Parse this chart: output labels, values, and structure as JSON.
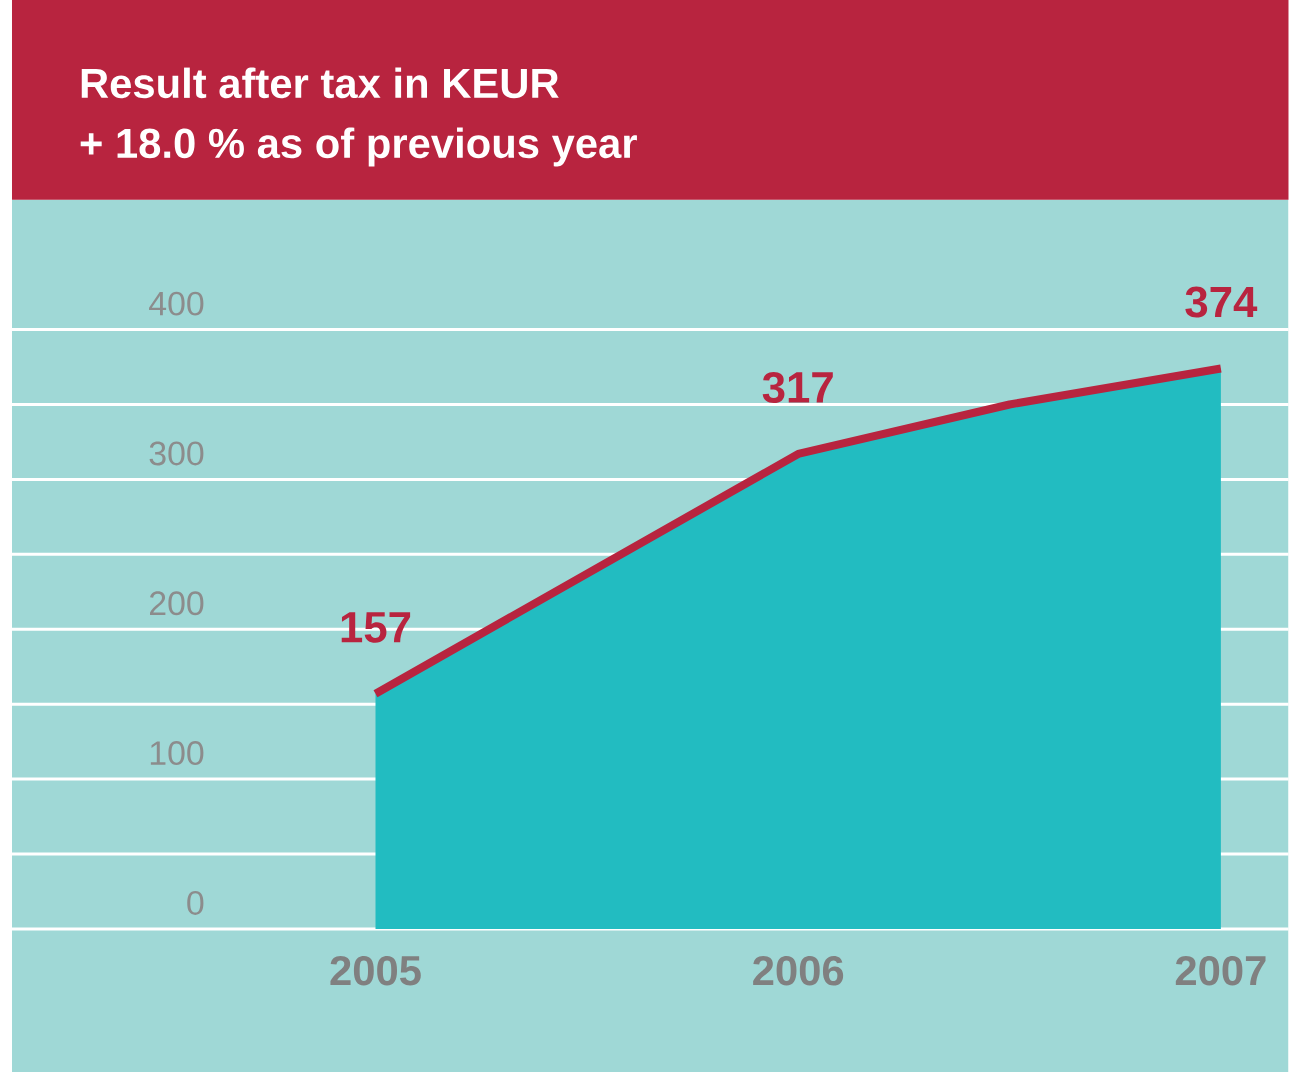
{
  "chart_data": {
    "type": "area",
    "title": "Result after tax in KEUR",
    "subtitle": "+ 18.0 % as of previous year",
    "x": [
      2005,
      2006,
      2006.5,
      2007
    ],
    "series": [
      {
        "color": "#22bcc1",
        "values": [
          157,
          317,
          350,
          374
        ]
      },
      {
        "type": "line",
        "color": "#b8243f",
        "values": [
          157,
          317,
          350,
          374
        ],
        "value_labels": [
          "157",
          "317",
          null,
          "374"
        ]
      }
    ],
    "xlim": [
      2004.14,
      2007.16
    ],
    "ylim": [
      0,
      400
    ],
    "xticks": [
      2005,
      2006,
      2007
    ],
    "yticks": [
      0,
      {
        "value": 50,
        "label": null
      },
      100,
      {
        "value": 150,
        "label": null
      },
      200,
      {
        "value": 250,
        "label": null
      },
      300,
      {
        "value": 350,
        "label": null
      },
      400
    ],
    "grid": "y",
    "marker": "none",
    "line_style": "solid"
  }
}
